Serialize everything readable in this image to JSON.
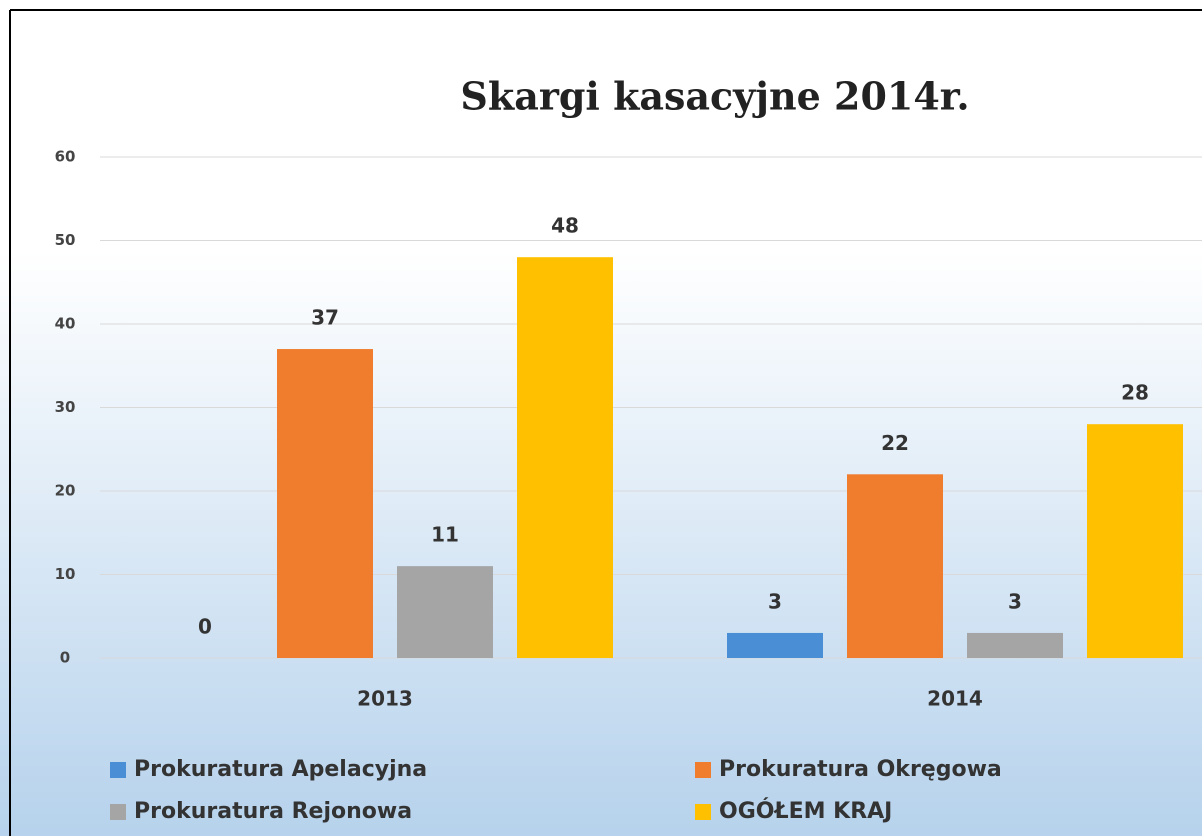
{
  "chart_data": {
    "type": "bar",
    "title": "Skargi kasacyjne 2014r.",
    "categories": [
      "2013",
      "2014"
    ],
    "series": [
      {
        "name": "Prokuratura Apelacyjna",
        "color": "#4a8fd6",
        "values": [
          0,
          3
        ]
      },
      {
        "name": "Prokuratura Okręgowa",
        "color": "#f07c2e",
        "values": [
          37,
          22
        ]
      },
      {
        "name": "Prokuratura Rejonowa",
        "color": "#a5a5a5",
        "values": [
          11,
          3
        ]
      },
      {
        "name": "OGÓŁEM KRAJ",
        "color": "#ffc000",
        "values": [
          48,
          28
        ]
      }
    ],
    "ylim": [
      0,
      60
    ],
    "yticks": [
      0,
      10,
      20,
      30,
      40,
      50,
      60
    ],
    "grid": true,
    "legend": "bottom"
  }
}
